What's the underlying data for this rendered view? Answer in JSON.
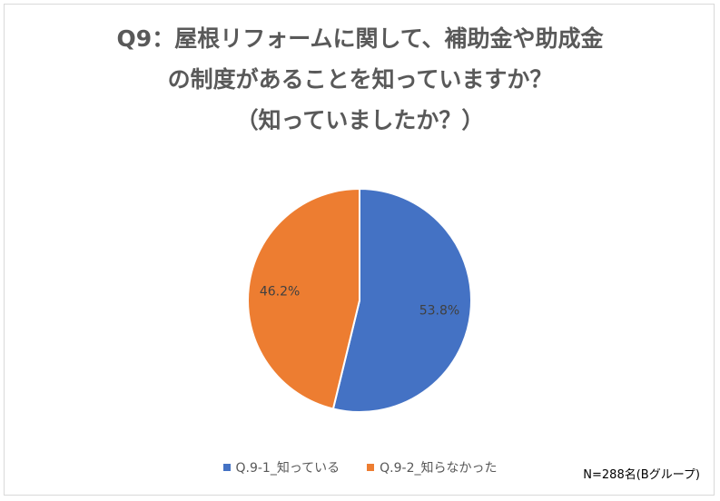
{
  "chart_data": {
    "type": "pie",
    "title_lines": [
      "Q9：屋根リフォームに関して、補助金や助成金",
      "の制度があることを知っていますか？",
      "（知っていましたか？）"
    ],
    "categories": [
      "Q.9-1_知っている",
      "Q.9-2_知らなかった"
    ],
    "values": [
      53.8,
      46.2
    ],
    "data_labels": [
      "53.8%",
      "46.2%"
    ],
    "colors": [
      "#4472c4",
      "#ed7d31"
    ],
    "legend_placement": "bottom"
  },
  "note": "N=288名(Bグループ)"
}
